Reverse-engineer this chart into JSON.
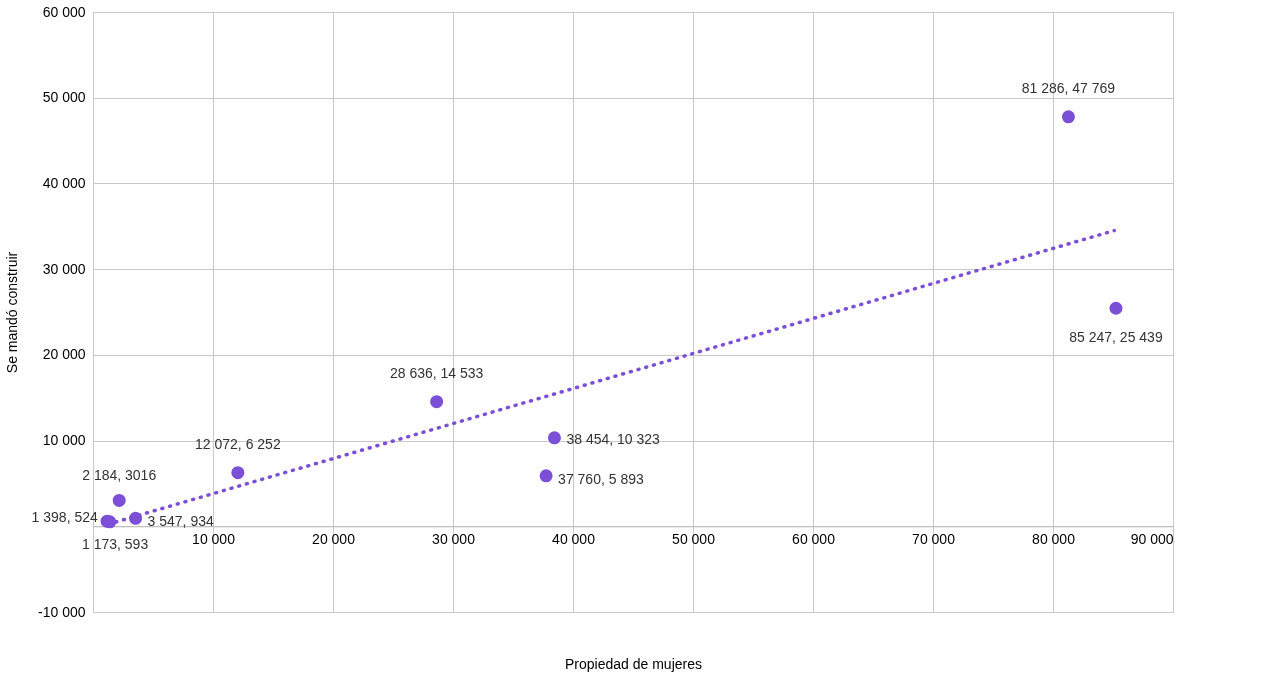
{
  "chart_data": {
    "type": "scatter",
    "xlabel": "Propiedad de mujeres",
    "ylabel": "Se mandó construir",
    "xlim": [
      0,
      90000
    ],
    "ylim": [
      -10000,
      60000
    ],
    "xticks": [
      {
        "value": 0,
        "label": null
      },
      {
        "value": 10000,
        "label": "10 000"
      },
      {
        "value": 20000,
        "label": "20 000"
      },
      {
        "value": 30000,
        "label": "30 000"
      },
      {
        "value": 40000,
        "label": "40 000"
      },
      {
        "value": 50000,
        "label": "50 000"
      },
      {
        "value": 60000,
        "label": "60 000"
      },
      {
        "value": 70000,
        "label": "70 000"
      },
      {
        "value": 80000,
        "label": "80 000"
      },
      {
        "value": 90000,
        "label": "90 000"
      }
    ],
    "yticks": [
      {
        "value": -10000,
        "label": "-10 000"
      },
      {
        "value": 0,
        "label": null
      },
      {
        "value": 10000,
        "label": "10 000"
      },
      {
        "value": 20000,
        "label": "20 000"
      },
      {
        "value": 30000,
        "label": "30 000"
      },
      {
        "value": 40000,
        "label": "40 000"
      },
      {
        "value": 50000,
        "label": "50 000"
      },
      {
        "value": 60000,
        "label": "60 000"
      }
    ],
    "grid": true,
    "series": [
      {
        "color": "#7b4fd6",
        "marker": "circle",
        "x": [
          1173,
          1398,
          2184,
          3547,
          12072,
          28636,
          37760,
          38454,
          81286,
          85247
        ],
        "values": [
          593,
          524,
          3016,
          934,
          6252,
          14533,
          5893,
          10323,
          47769,
          25439
        ],
        "value_labels": [
          "1 173, 593",
          "1 398, 524",
          "2 184, 3016",
          "3 547, 934",
          "12 072, 6 252",
          "28 636, 14 533",
          "37 760, 5 893",
          "38 454, 10 323",
          "81 286, 47 769",
          "85 247, 25 439"
        ]
      },
      {
        "type": "line",
        "color": "#7b4fd6",
        "line_style": "dotted",
        "x": [
          1900,
          85100
        ],
        "values": [
          500,
          34500
        ]
      }
    ]
  }
}
